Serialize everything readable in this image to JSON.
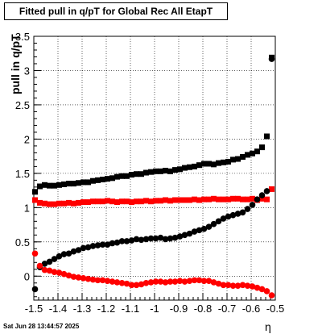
{
  "title": "Fitted pull in q/pT for Global Rec All EtapT",
  "datestamp": "Sat Jun 28 13:44:57 2025",
  "chart_data": {
    "type": "scatter",
    "title": "Fitted pull in q/pT for Global Rec All EtapT",
    "xlabel": "η",
    "ylabel": "pull in q/pT",
    "xlim": [
      -1.5,
      -0.5
    ],
    "ylim": [
      -0.35,
      3.5
    ],
    "grid": true,
    "x_ticks": [
      "-1.5",
      "-1.4",
      "-1.3",
      "-1.2",
      "-1.1",
      "-1",
      "-0.9",
      "-0.8",
      "-0.7",
      "-0.6",
      "-0.5"
    ],
    "y_ticks": [
      "0",
      "0.5",
      "1",
      "1.5",
      "2",
      "2.5",
      "3",
      "3.5"
    ],
    "x": [
      -1.495,
      -1.475,
      -1.455,
      -1.435,
      -1.415,
      -1.395,
      -1.375,
      -1.355,
      -1.335,
      -1.315,
      -1.295,
      -1.275,
      -1.255,
      -1.235,
      -1.215,
      -1.195,
      -1.175,
      -1.155,
      -1.135,
      -1.115,
      -1.095,
      -1.075,
      -1.055,
      -1.035,
      -1.015,
      -0.995,
      -0.975,
      -0.955,
      -0.935,
      -0.915,
      -0.895,
      -0.875,
      -0.855,
      -0.835,
      -0.815,
      -0.795,
      -0.775,
      -0.755,
      -0.735,
      -0.715,
      -0.695,
      -0.675,
      -0.655,
      -0.635,
      -0.615,
      -0.595,
      -0.575,
      -0.555,
      -0.535,
      -0.515
    ],
    "series": [
      {
        "marker": "square",
        "color": "#000000",
        "values": [
          1.23,
          1.31,
          1.33,
          1.32,
          1.32,
          1.33,
          1.34,
          1.35,
          1.35,
          1.36,
          1.37,
          1.37,
          1.39,
          1.4,
          1.41,
          1.42,
          1.43,
          1.45,
          1.46,
          1.46,
          1.48,
          1.49,
          1.49,
          1.51,
          1.52,
          1.53,
          1.53,
          1.54,
          1.53,
          1.55,
          1.56,
          1.58,
          1.59,
          1.6,
          1.62,
          1.64,
          1.64,
          1.63,
          1.65,
          1.66,
          1.67,
          1.7,
          1.71,
          1.74,
          1.77,
          1.79,
          1.82,
          1.88,
          2.04,
          3.19
        ]
      },
      {
        "marker": "square",
        "color": "#ff0000",
        "values": [
          1.11,
          1.07,
          1.06,
          1.05,
          1.05,
          1.06,
          1.06,
          1.07,
          1.06,
          1.07,
          1.08,
          1.08,
          1.09,
          1.09,
          1.09,
          1.1,
          1.09,
          1.08,
          1.09,
          1.09,
          1.08,
          1.09,
          1.09,
          1.1,
          1.09,
          1.1,
          1.1,
          1.11,
          1.1,
          1.11,
          1.11,
          1.11,
          1.11,
          1.12,
          1.11,
          1.12,
          1.12,
          1.13,
          1.12,
          1.12,
          1.12,
          1.13,
          1.13,
          1.12,
          1.12,
          1.13,
          1.11,
          1.13,
          1.12,
          1.27
        ]
      },
      {
        "marker": "circle",
        "color": "#000000",
        "values": [
          -0.19,
          0.13,
          0.18,
          0.21,
          0.25,
          0.29,
          0.32,
          0.33,
          0.36,
          0.38,
          0.41,
          0.42,
          0.44,
          0.45,
          0.46,
          0.46,
          0.48,
          0.49,
          0.51,
          0.51,
          0.52,
          0.54,
          0.53,
          0.54,
          0.55,
          0.55,
          0.56,
          0.54,
          0.55,
          0.56,
          0.58,
          0.6,
          0.62,
          0.65,
          0.67,
          0.69,
          0.72,
          0.76,
          0.8,
          0.84,
          0.87,
          0.89,
          0.91,
          0.93,
          0.98,
          1.04,
          1.12,
          1.18,
          1.24,
          3.17
        ]
      },
      {
        "marker": "circle",
        "color": "#ff0000",
        "values": [
          0.33,
          0.15,
          0.09,
          0.08,
          0.06,
          0.05,
          0.03,
          0.01,
          -0.01,
          -0.02,
          -0.03,
          -0.04,
          -0.05,
          -0.06,
          -0.06,
          -0.07,
          -0.08,
          -0.09,
          -0.1,
          -0.11,
          -0.13,
          -0.13,
          -0.12,
          -0.1,
          -0.09,
          -0.08,
          -0.08,
          -0.09,
          -0.08,
          -0.08,
          -0.07,
          -0.08,
          -0.07,
          -0.06,
          -0.06,
          -0.07,
          -0.07,
          -0.09,
          -0.11,
          -0.13,
          -0.13,
          -0.14,
          -0.14,
          -0.13,
          -0.14,
          -0.15,
          -0.17,
          -0.19,
          -0.22,
          -0.28
        ]
      }
    ]
  }
}
